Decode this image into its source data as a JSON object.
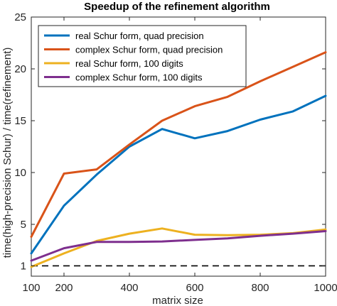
{
  "chart_data": {
    "type": "line",
    "title": "Speedup of the refinement algorithm",
    "xlabel": "matrix size",
    "ylabel": "time(high-precision Schur) / time(refinement)",
    "xlim": [
      100,
      1000
    ],
    "ylim": [
      0,
      25
    ],
    "xticks": [
      100,
      200,
      400,
      600,
      800,
      1000
    ],
    "yticks": [
      1,
      5,
      10,
      15,
      20,
      25
    ],
    "x": [
      100,
      200,
      300,
      400,
      500,
      600,
      700,
      800,
      900,
      1000
    ],
    "series": [
      {
        "name": "real Schur form, quad precision",
        "color": "#0072bd",
        "values": [
          2.2,
          6.8,
          9.8,
          12.5,
          14.2,
          13.3,
          14.0,
          15.1,
          15.9,
          17.4
        ]
      },
      {
        "name": "complex Schur form, quad precision",
        "color": "#d95319",
        "values": [
          3.8,
          9.9,
          10.3,
          12.7,
          15.0,
          16.4,
          17.3,
          18.8,
          20.2,
          21.6
        ]
      },
      {
        "name": "real Schur form, 100 digits",
        "color": "#edb120",
        "values": [
          0.9,
          2.2,
          3.4,
          4.1,
          4.6,
          4.0,
          3.95,
          4.0,
          4.15,
          4.5
        ]
      },
      {
        "name": "complex Schur form, 100 digits",
        "color": "#7e2f8e",
        "values": [
          1.5,
          2.7,
          3.3,
          3.3,
          3.35,
          3.5,
          3.65,
          3.9,
          4.1,
          4.35
        ]
      }
    ],
    "reference_line": {
      "y": 1,
      "style": "dashed",
      "color": "#000000"
    },
    "grid": false,
    "legend_position": "top-left"
  }
}
